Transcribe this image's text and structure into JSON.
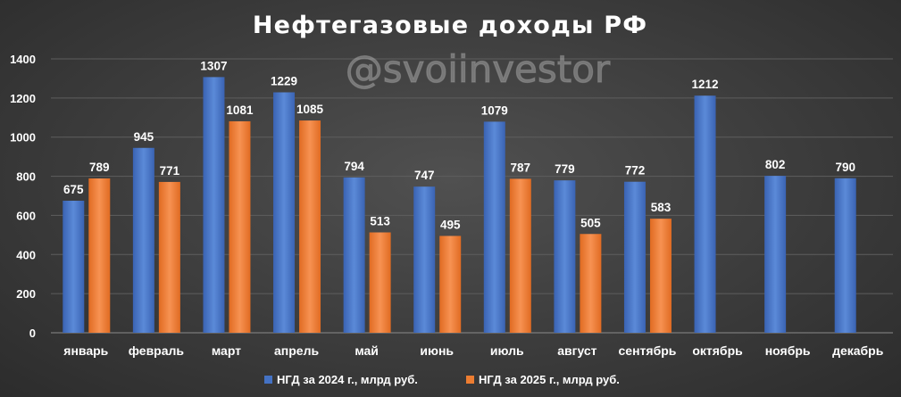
{
  "chart_data": {
    "type": "bar",
    "title": "Нефтегазовые доходы РФ",
    "watermark": "@svoiinvestor",
    "categories": [
      "январь",
      "февраль",
      "март",
      "апрель",
      "май",
      "июнь",
      "июль",
      "август",
      "сентябрь",
      "октябрь",
      "ноябрь",
      "декабрь"
    ],
    "series": [
      {
        "name": "НГД за 2024 г., млрд руб.",
        "color": "#4472c4",
        "values": [
          675,
          945,
          1307,
          1229,
          794,
          747,
          1079,
          779,
          772,
          1212,
          802,
          790
        ]
      },
      {
        "name": "НГД за 2025 г., млрд руб.",
        "color": "#ed7d31",
        "values": [
          789,
          771,
          1081,
          1085,
          513,
          495,
          787,
          505,
          583,
          null,
          null,
          null
        ]
      }
    ],
    "ylim": [
      0,
      1400
    ],
    "yticks": [
      0,
      200,
      400,
      600,
      800,
      1000,
      1200,
      1400
    ],
    "grid": true,
    "legend_position": "bottom",
    "data_labels": true
  }
}
